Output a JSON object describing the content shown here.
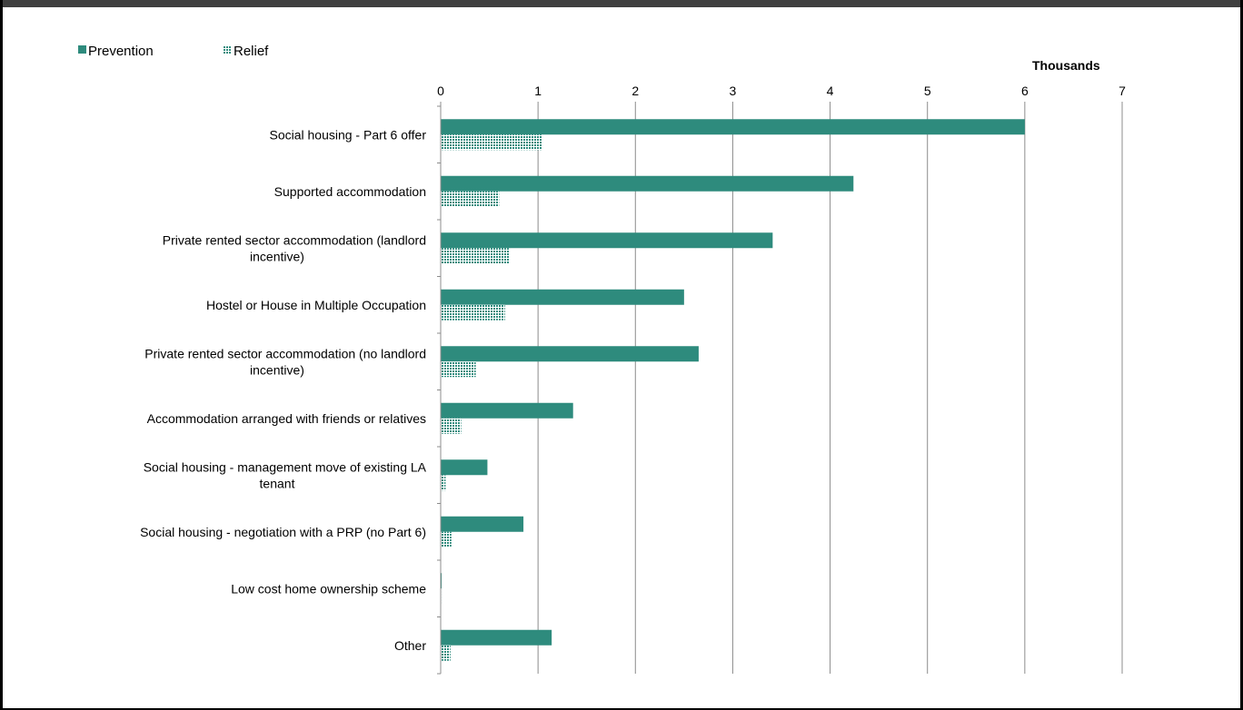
{
  "chart_data": {
    "type": "bar",
    "orientation": "horizontal",
    "unit_label": "Thousands",
    "categories": [
      [
        "Social housing - Part 6 offer"
      ],
      [
        "Supported accommodation"
      ],
      [
        "Private rented sector accommodation (landlord",
        "incentive)"
      ],
      [
        "Hostel or House in Multiple Occupation"
      ],
      [
        "Private rented sector accommodation (no landlord",
        "incentive)"
      ],
      [
        "Accommodation arranged with friends or relatives"
      ],
      [
        "Social housing - management move of existing LA",
        "tenant"
      ],
      [
        "Social housing - negotiation with a PRP (no Part 6)"
      ],
      [
        "Low cost home ownership scheme"
      ],
      [
        "Other"
      ]
    ],
    "series": [
      {
        "name": "Prevention",
        "values": [
          6.0,
          4.24,
          3.41,
          2.5,
          2.65,
          1.36,
          0.48,
          0.85,
          0.01,
          1.14
        ]
      },
      {
        "name": "Relief",
        "values": [
          1.04,
          0.6,
          0.7,
          0.66,
          0.36,
          0.21,
          0.05,
          0.11,
          0.01,
          0.1
        ]
      }
    ],
    "xlim": [
      0,
      7
    ],
    "xticks": [
      "0",
      "1",
      "2",
      "3",
      "4",
      "5",
      "6",
      "7"
    ],
    "grid": true,
    "legend_position": "top-left",
    "colors": {
      "Prevention": "#2e8b7d",
      "Relief": "#2e8b7d"
    }
  }
}
